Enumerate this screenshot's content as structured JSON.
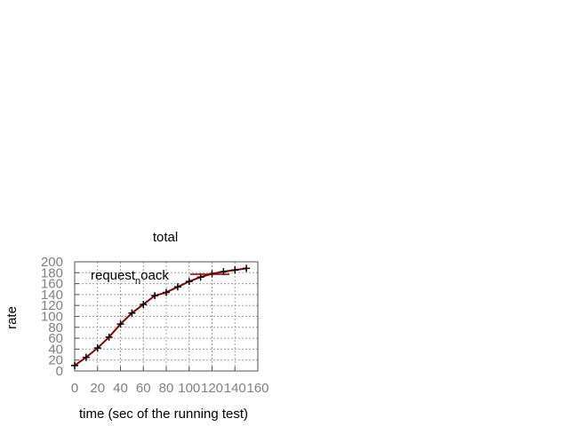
{
  "chart_data": {
    "type": "line",
    "title": "total",
    "xlabel": "time (sec of the running test)",
    "ylabel": "rate",
    "xlim": [
      0,
      160
    ],
    "ylim": [
      0,
      200
    ],
    "xticks": [
      0,
      20,
      40,
      60,
      80,
      100,
      120,
      140,
      160
    ],
    "yticks": [
      0,
      20,
      40,
      60,
      80,
      100,
      120,
      140,
      160,
      180,
      200
    ],
    "grid": true,
    "legend_position": "top-left",
    "series": [
      {
        "name_main": "request",
        "name_sub": "n",
        "name_tail": "oack",
        "color": "#8b0000",
        "marker": "plus",
        "x": [
          0,
          10,
          20,
          30,
          40,
          50,
          60,
          70,
          80,
          90,
          100,
          110,
          120,
          130,
          140,
          150
        ],
        "y": [
          10,
          25,
          42,
          62,
          86,
          106,
          122,
          138,
          144,
          154,
          164,
          172,
          178,
          182,
          185,
          188
        ]
      }
    ]
  }
}
